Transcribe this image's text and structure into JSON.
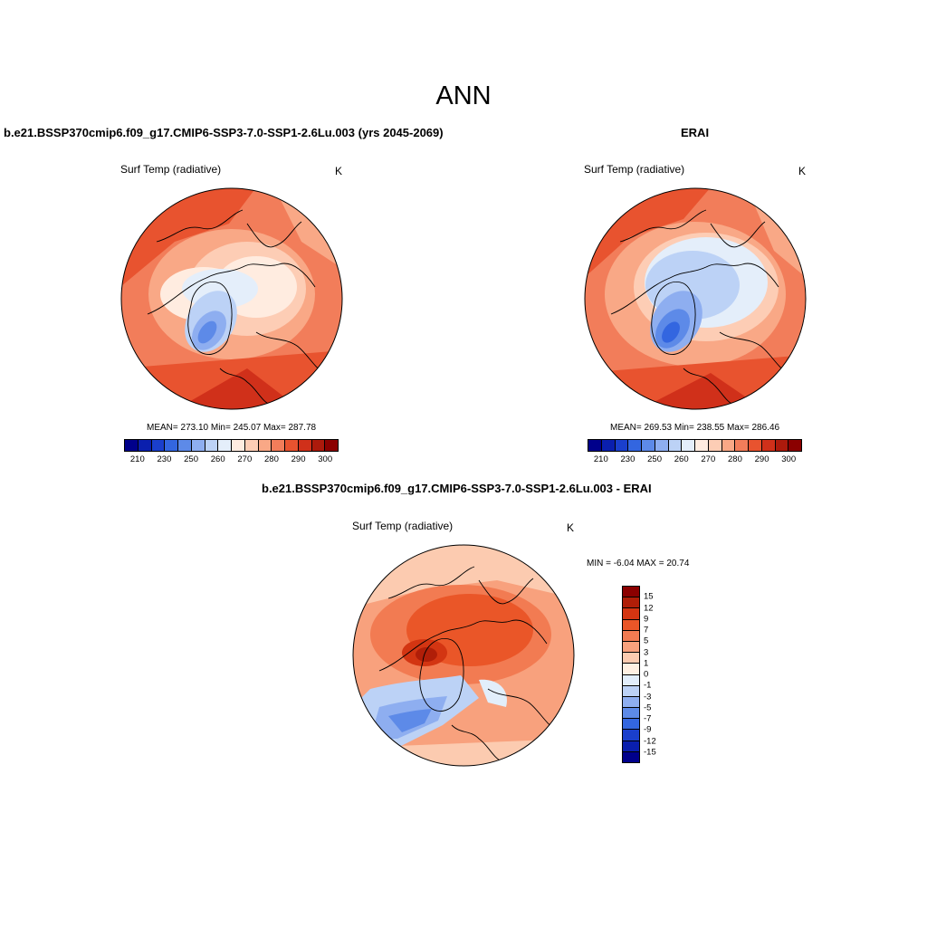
{
  "title": "ANN",
  "panels": {
    "model": {
      "title": "b.e21.BSSP370cmip6.f09_g17.CMIP6-SSP3-7.0-SSP1-2.6Lu.003 (yrs 2045-2069)",
      "variable": "Surf Temp (radiative)",
      "units": "K",
      "stats": "MEAN= 273.10  Min= 245.07  Max= 287.78"
    },
    "obs": {
      "title": "ERAI",
      "variable": "Surf Temp (radiative)",
      "units": "K",
      "stats": "MEAN= 269.53  Min= 238.55  Max= 286.46"
    },
    "diff": {
      "title": "b.e21.BSSP370cmip6.f09_g17.CMIP6-SSP3-7.0-SSP1-2.6Lu.003 - ERAI",
      "variable": "Surf Temp (radiative)",
      "units": "K",
      "stats": "MIN =  -6.04 MAX =  20.74"
    }
  },
  "colorbar_abs": {
    "colors": [
      "#00008b",
      "#0a1fae",
      "#1a3fcc",
      "#3366e0",
      "#5d8ae8",
      "#8eaef0",
      "#bcd2f6",
      "#e4eefa",
      "#ffece0",
      "#fdcdb5",
      "#f9a886",
      "#f27d5a",
      "#e8532f",
      "#d0301a",
      "#ac1a0c",
      "#8b0000"
    ],
    "labels": [
      "210",
      "230",
      "250",
      "260",
      "270",
      "280",
      "290",
      "300"
    ]
  },
  "colorbar_diff": {
    "colors": [
      "#8b0000",
      "#b01e08",
      "#d33512",
      "#ea5628",
      "#f27b52",
      "#f8a17d",
      "#fccbb0",
      "#fff0e2",
      "#e2eefb",
      "#bcd2f6",
      "#8eaef0",
      "#5d8ae8",
      "#3366e0",
      "#1a3fcc",
      "#0a1fae",
      "#00008b"
    ],
    "labels": [
      "15",
      "12",
      "9",
      "7",
      "5",
      "3",
      "1",
      "0",
      "-1",
      "-3",
      "-5",
      "-7",
      "-9",
      "-12",
      "-15"
    ]
  },
  "chart_data": [
    {
      "type": "heatmap",
      "title": "b.e21.BSSP370cmip6.f09_g17.CMIP6-SSP3-7.0-SSP1-2.6Lu.003 (yrs 2045-2069)",
      "variable": "Surf Temp (radiative)",
      "units": "K",
      "projection": "north polar stereographic",
      "mean": 273.1,
      "min": 245.07,
      "max": 287.78,
      "contour_levels": [
        210,
        220,
        230,
        240,
        250,
        255,
        260,
        265,
        270,
        275,
        280,
        285,
        290,
        295,
        300
      ]
    },
    {
      "type": "heatmap",
      "title": "ERAI",
      "variable": "Surf Temp (radiative)",
      "units": "K",
      "projection": "north polar stereographic",
      "mean": 269.53,
      "min": 238.55,
      "max": 286.46,
      "contour_levels": [
        210,
        220,
        230,
        240,
        250,
        255,
        260,
        265,
        270,
        275,
        280,
        285,
        290,
        295,
        300
      ]
    },
    {
      "type": "heatmap",
      "title": "b.e21.BSSP370cmip6.f09_g17.CMIP6-SSP3-7.0-SSP1-2.6Lu.003 - ERAI",
      "variable": "Surf Temp (radiative)",
      "units": "K",
      "projection": "north polar stereographic",
      "min": -6.04,
      "max": 20.74,
      "contour_levels": [
        -15,
        -12,
        -9,
        -7,
        -5,
        -3,
        -1,
        0,
        1,
        3,
        5,
        7,
        9,
        12,
        15
      ]
    }
  ]
}
